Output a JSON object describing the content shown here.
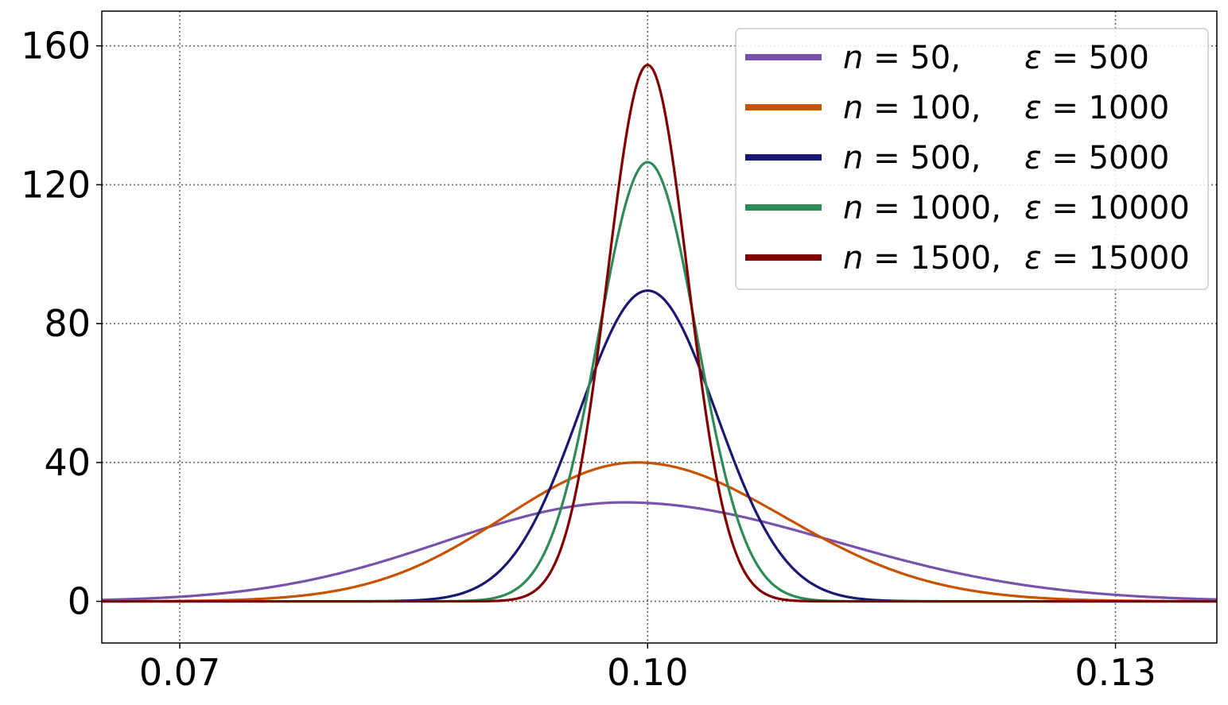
{
  "chart_data": {
    "type": "line",
    "title": "",
    "xlabel": "",
    "ylabel": "",
    "xlim": [
      0.065,
      0.1365
    ],
    "ylim": [
      -12,
      170
    ],
    "grid": true,
    "legend_position": "top-right",
    "xticks": [
      {
        "value": 0.07,
        "label": "0.07"
      },
      {
        "value": 0.1,
        "label": "0.10"
      },
      {
        "value": 0.13,
        "label": "0.13"
      }
    ],
    "yticks": [
      {
        "value": 0,
        "label": "0"
      },
      {
        "value": 40,
        "label": "40"
      },
      {
        "value": 80,
        "label": "80"
      },
      {
        "value": 120,
        "label": "120"
      },
      {
        "value": 160,
        "label": "160"
      }
    ],
    "series": [
      {
        "n": "50",
        "eps": "500",
        "n_text": "50,",
        "color": "#7b52ab",
        "peak_x": 0.0985,
        "peak_y": 28.5,
        "sigma_left": 0.0115,
        "sigma_right": 0.0135
      },
      {
        "n": "100",
        "eps": "1000",
        "n_text": "100,",
        "color": "#c85200",
        "peak_x": 0.0993,
        "peak_y": 40.0,
        "sigma_left": 0.0085,
        "sigma_right": 0.0095
      },
      {
        "n": "500",
        "eps": "5000",
        "n_text": "500,",
        "color": "#191970",
        "peak_x": 0.1,
        "peak_y": 89.5,
        "sigma_left": 0.0044,
        "sigma_right": 0.0044
      },
      {
        "n": "1000",
        "eps": "10000",
        "n_text": "1000,",
        "color": "#2e8b57",
        "peak_x": 0.1,
        "peak_y": 126.5,
        "sigma_left": 0.00315,
        "sigma_right": 0.00315
      },
      {
        "n": "1500",
        "eps": "15000",
        "n_text": "1500,",
        "color": "#800000",
        "peak_x": 0.1,
        "peak_y": 154.5,
        "sigma_left": 0.00258,
        "sigma_right": 0.00258
      }
    ],
    "legend": {
      "n_symbol": "n",
      "eps_symbol": "ε",
      "equals": "="
    }
  }
}
